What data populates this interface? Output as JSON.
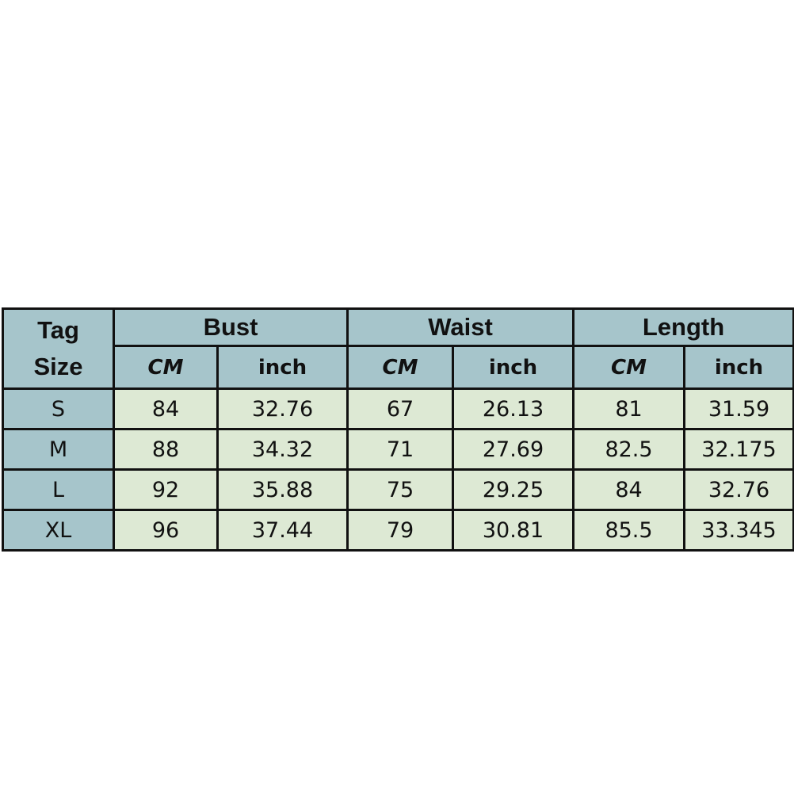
{
  "table": {
    "tag_size_header": [
      "Tag",
      "Size"
    ],
    "groups": [
      "Bust",
      "Waist",
      "Length"
    ],
    "units": [
      "CM",
      "inch",
      "CM",
      "inch",
      "CM",
      "inch"
    ],
    "rows": [
      {
        "size": "S",
        "values": [
          "84",
          "32.76",
          "67",
          "26.13",
          "81",
          "31.59"
        ]
      },
      {
        "size": "M",
        "values": [
          "88",
          "34.32",
          "71",
          "27.69",
          "82.5",
          "32.175"
        ]
      },
      {
        "size": "L",
        "values": [
          "92",
          "35.88",
          "75",
          "29.25",
          "84",
          "32.76"
        ]
      },
      {
        "size": "XL",
        "values": [
          "96",
          "37.44",
          "79",
          "30.81",
          "85.5",
          "33.345"
        ]
      }
    ],
    "colors": {
      "header": "#a6c5cb",
      "data": "#dde9d4",
      "border": "#111111"
    }
  }
}
